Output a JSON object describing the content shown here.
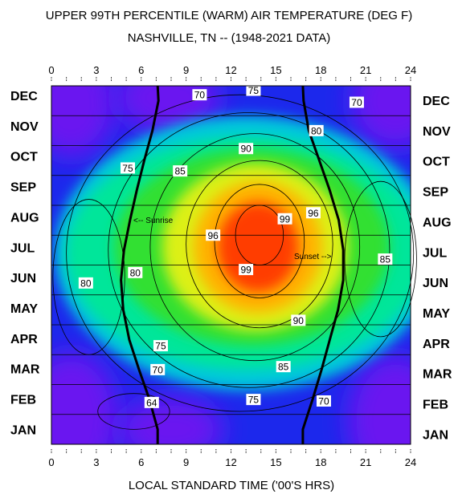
{
  "chart_data": {
    "type": "heatmap",
    "title": "UPPER 99TH PERCENTILE  (WARM)  AIR TEMPERATURE (DEG F)",
    "subtitle": "NASHVILLE, TN  --  (1948-2021 DATA)",
    "xlabel": "LOCAL STANDARD TIME ('00'S HRS)",
    "ylabel": "",
    "xlim": [
      0,
      24
    ],
    "x_ticks": [
      "0",
      "3",
      "6",
      "9",
      "12",
      "15",
      "18",
      "21",
      "24"
    ],
    "y_categories": [
      "JAN",
      "FEB",
      "MAR",
      "APR",
      "MAY",
      "JUN",
      "JUL",
      "AUG",
      "SEP",
      "OCT",
      "NOV",
      "DEC"
    ],
    "colorscale": [
      "#6a14f0",
      "#1c28ec",
      "#00c8dc",
      "#00e69a",
      "#30e030",
      "#dcf014",
      "#ffb400",
      "#ff3c00"
    ],
    "contour_labels": [
      {
        "text": "70",
        "x": 9.9,
        "month": 11.7
      },
      {
        "text": "75",
        "x": 13.5,
        "month": 11.85
      },
      {
        "text": "70",
        "x": 20.4,
        "month": 11.45
      },
      {
        "text": "80",
        "x": 17.7,
        "month": 10.5
      },
      {
        "text": "90",
        "x": 13.0,
        "month": 9.9
      },
      {
        "text": "75",
        "x": 5.1,
        "month": 9.25
      },
      {
        "text": "85",
        "x": 8.6,
        "month": 9.15
      },
      {
        "text": "96",
        "x": 17.5,
        "month": 7.75
      },
      {
        "text": "99",
        "x": 15.6,
        "month": 7.55
      },
      {
        "text": "96",
        "x": 10.8,
        "month": 7.0
      },
      {
        "text": "85",
        "x": 22.3,
        "month": 6.2
      },
      {
        "text": "99",
        "x": 13.0,
        "month": 5.85
      },
      {
        "text": "80",
        "x": 5.6,
        "month": 5.75
      },
      {
        "text": "80",
        "x": 2.3,
        "month": 5.4
      },
      {
        "text": "90",
        "x": 16.5,
        "month": 4.15
      },
      {
        "text": "75",
        "x": 7.3,
        "month": 3.3
      },
      {
        "text": "85",
        "x": 15.5,
        "month": 2.6
      },
      {
        "text": "70",
        "x": 7.1,
        "month": 2.5
      },
      {
        "text": "75",
        "x": 13.5,
        "month": 1.5
      },
      {
        "text": "70",
        "x": 18.2,
        "month": 1.45
      },
      {
        "text": "64",
        "x": 6.7,
        "month": 1.4
      }
    ],
    "sunrise": {
      "label": "<-- Sunrise",
      "hours": [
        7.1,
        7.1,
        6.55,
        5.85,
        5.2,
        4.8,
        4.65,
        4.85,
        5.25,
        5.7,
        6.2,
        6.75,
        7.15,
        7.1
      ]
    },
    "sunset": {
      "label": "Sunset -->",
      "hours": [
        16.8,
        16.8,
        17.45,
        18.05,
        18.6,
        19.15,
        19.5,
        19.5,
        19.2,
        18.6,
        17.9,
        17.2,
        16.85,
        16.8
      ]
    }
  }
}
